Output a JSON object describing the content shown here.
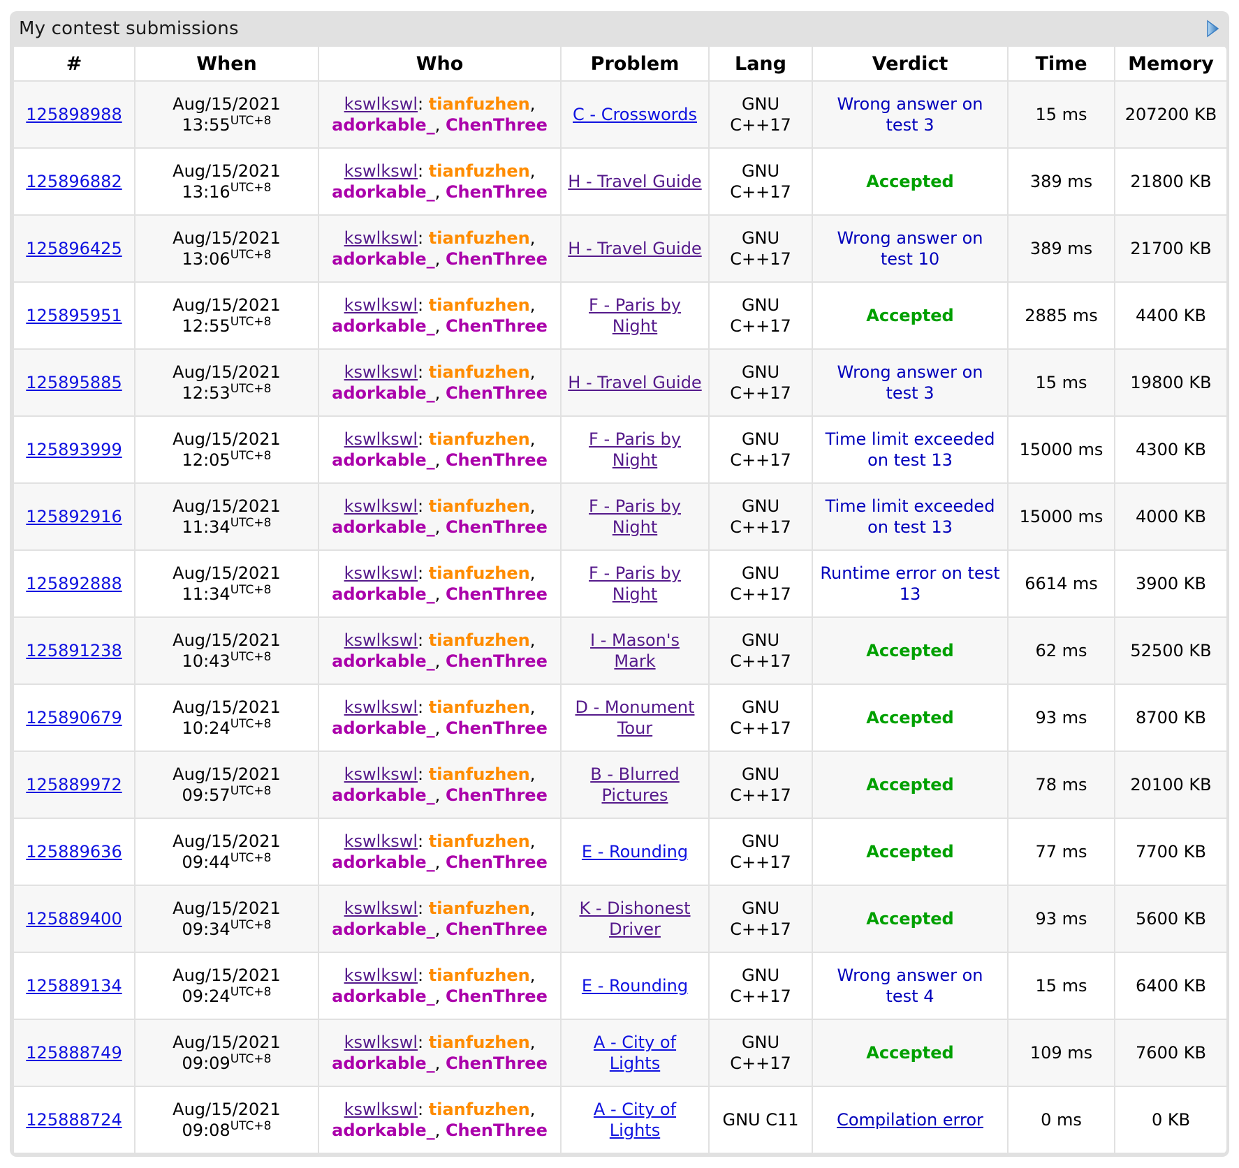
{
  "title": "My contest submissions",
  "caption_icon": "expand-arrow-icon",
  "columns": [
    "#",
    "When",
    "Who",
    "Problem",
    "Lang",
    "Verdict",
    "Time",
    "Memory"
  ],
  "team": {
    "name": "kswlkswl",
    "separator": ": ",
    "members": [
      {
        "handle": "tianfuzhen",
        "color": "#ff8c00"
      },
      {
        "handle": "adorkable_",
        "color": "#aa00aa"
      },
      {
        "handle": "ChenThree",
        "color": "#aa00aa"
      }
    ]
  },
  "colors": {
    "box_background": "#e1e1e1",
    "row_alt_background": "#f7f7f7",
    "link_blue": "#0f12e0",
    "visited_purple": "#551a8b",
    "verdict_rejected": "#0000bb",
    "verdict_accepted": "#00a000",
    "arrow_blue": "#3b7fc4"
  },
  "rows": [
    {
      "id": "125898988",
      "date": "Aug/15/2021",
      "time": "13:55",
      "tz": "UTC+8",
      "problem": "C - Crosswords",
      "problem_visited": false,
      "lang": "GNU C++17",
      "verdict": "Wrong answer on test 3",
      "verdict_type": "rejected",
      "exec_time": "15 ms",
      "memory": "207200 KB"
    },
    {
      "id": "125896882",
      "date": "Aug/15/2021",
      "time": "13:16",
      "tz": "UTC+8",
      "problem": "H - Travel Guide",
      "problem_visited": true,
      "lang": "GNU C++17",
      "verdict": "Accepted",
      "verdict_type": "accepted",
      "exec_time": "389 ms",
      "memory": "21800 KB"
    },
    {
      "id": "125896425",
      "date": "Aug/15/2021",
      "time": "13:06",
      "tz": "UTC+8",
      "problem": "H - Travel Guide",
      "problem_visited": true,
      "lang": "GNU C++17",
      "verdict": "Wrong answer on test 10",
      "verdict_type": "rejected",
      "exec_time": "389 ms",
      "memory": "21700 KB"
    },
    {
      "id": "125895951",
      "date": "Aug/15/2021",
      "time": "12:55",
      "tz": "UTC+8",
      "problem": "F - Paris by Night",
      "problem_visited": true,
      "lang": "GNU C++17",
      "verdict": "Accepted",
      "verdict_type": "accepted",
      "exec_time": "2885 ms",
      "memory": "4400 KB"
    },
    {
      "id": "125895885",
      "date": "Aug/15/2021",
      "time": "12:53",
      "tz": "UTC+8",
      "problem": "H - Travel Guide",
      "problem_visited": true,
      "lang": "GNU C++17",
      "verdict": "Wrong answer on test 3",
      "verdict_type": "rejected",
      "exec_time": "15 ms",
      "memory": "19800 KB"
    },
    {
      "id": "125893999",
      "date": "Aug/15/2021",
      "time": "12:05",
      "tz": "UTC+8",
      "problem": "F - Paris by Night",
      "problem_visited": true,
      "lang": "GNU C++17",
      "verdict": "Time limit exceeded on test 13",
      "verdict_type": "rejected",
      "exec_time": "15000 ms",
      "memory": "4300 KB"
    },
    {
      "id": "125892916",
      "date": "Aug/15/2021",
      "time": "11:34",
      "tz": "UTC+8",
      "problem": "F - Paris by Night",
      "problem_visited": true,
      "lang": "GNU C++17",
      "verdict": "Time limit exceeded on test 13",
      "verdict_type": "rejected",
      "exec_time": "15000 ms",
      "memory": "4000 KB"
    },
    {
      "id": "125892888",
      "date": "Aug/15/2021",
      "time": "11:34",
      "tz": "UTC+8",
      "problem": "F - Paris by Night",
      "problem_visited": true,
      "lang": "GNU C++17",
      "verdict": "Runtime error on test 13",
      "verdict_type": "rejected",
      "exec_time": "6614 ms",
      "memory": "3900 KB"
    },
    {
      "id": "125891238",
      "date": "Aug/15/2021",
      "time": "10:43",
      "tz": "UTC+8",
      "problem": "I - Mason's Mark",
      "problem_visited": true,
      "lang": "GNU C++17",
      "verdict": "Accepted",
      "verdict_type": "accepted",
      "exec_time": "62 ms",
      "memory": "52500 KB"
    },
    {
      "id": "125890679",
      "date": "Aug/15/2021",
      "time": "10:24",
      "tz": "UTC+8",
      "problem": "D - Monument Tour",
      "problem_visited": true,
      "lang": "GNU C++17",
      "verdict": "Accepted",
      "verdict_type": "accepted",
      "exec_time": "93 ms",
      "memory": "8700 KB"
    },
    {
      "id": "125889972",
      "date": "Aug/15/2021",
      "time": "09:57",
      "tz": "UTC+8",
      "problem": "B - Blurred Pictures",
      "problem_visited": true,
      "lang": "GNU C++17",
      "verdict": "Accepted",
      "verdict_type": "accepted",
      "exec_time": "78 ms",
      "memory": "20100 KB"
    },
    {
      "id": "125889636",
      "date": "Aug/15/2021",
      "time": "09:44",
      "tz": "UTC+8",
      "problem": "E - Rounding",
      "problem_visited": false,
      "lang": "GNU C++17",
      "verdict": "Accepted",
      "verdict_type": "accepted",
      "exec_time": "77 ms",
      "memory": "7700 KB"
    },
    {
      "id": "125889400",
      "date": "Aug/15/2021",
      "time": "09:34",
      "tz": "UTC+8",
      "problem": "K - Dishonest Driver",
      "problem_visited": true,
      "lang": "GNU C++17",
      "verdict": "Accepted",
      "verdict_type": "accepted",
      "exec_time": "93 ms",
      "memory": "5600 KB"
    },
    {
      "id": "125889134",
      "date": "Aug/15/2021",
      "time": "09:24",
      "tz": "UTC+8",
      "problem": "E - Rounding",
      "problem_visited": false,
      "lang": "GNU C++17",
      "verdict": "Wrong answer on test 4",
      "verdict_type": "rejected",
      "exec_time": "15 ms",
      "memory": "6400 KB"
    },
    {
      "id": "125888749",
      "date": "Aug/15/2021",
      "time": "09:09",
      "tz": "UTC+8",
      "problem": "A - City of Lights",
      "problem_visited": false,
      "lang": "GNU C++17",
      "verdict": "Accepted",
      "verdict_type": "accepted",
      "exec_time": "109 ms",
      "memory": "7600 KB"
    },
    {
      "id": "125888724",
      "date": "Aug/15/2021",
      "time": "09:08",
      "tz": "UTC+8",
      "problem": "A - City of Lights",
      "problem_visited": false,
      "lang": "GNU C11",
      "verdict": "Compilation error",
      "verdict_type": "link",
      "exec_time": "0 ms",
      "memory": "0 KB"
    }
  ]
}
